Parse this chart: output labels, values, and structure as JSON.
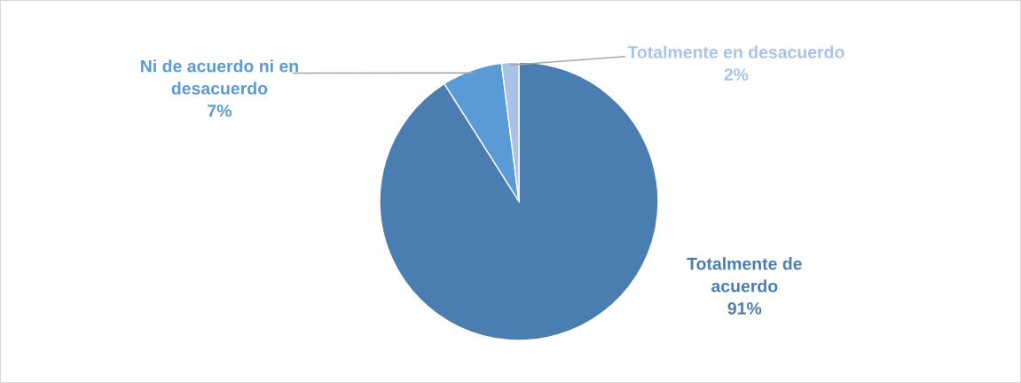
{
  "chart_data": {
    "type": "pie",
    "categories": [
      "Totalmente de\nacuerdo",
      "Ni de acuerdo ni en\ndesacuerdo",
      "Totalmente en desacuerdo"
    ],
    "values": [
      91,
      7,
      2
    ],
    "value_labels": [
      "91%",
      "7%",
      "2%"
    ],
    "colors": [
      "#4a7eb0",
      "#5b9bd5",
      "#a9c3e6"
    ],
    "legend": false
  }
}
